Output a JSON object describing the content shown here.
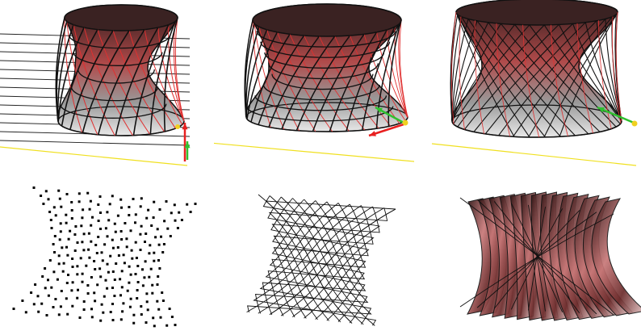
{
  "figure": {
    "panels": [
      {
        "id": "surface-planes",
        "mode": "shaded-surface-with-section-planes"
      },
      {
        "id": "surface-with-grid-arrows",
        "mode": "shaded-surface-with-grid-and-direction-arrows"
      },
      {
        "id": "surface-with-diagonal-grid",
        "mode": "shaded-surface-with-diagonal-grid"
      },
      {
        "id": "point-cloud",
        "mode": "points"
      },
      {
        "id": "wireframe-lattice",
        "mode": "wireframe"
      },
      {
        "id": "shaded-strips",
        "mode": "shaded-strips"
      }
    ],
    "colors": {
      "surface_dark": "#2a1a1a",
      "surface_red": "#b04a4a",
      "surface_light": "#e8e8e8",
      "edge": "#111111",
      "isoline_red": "#e03030",
      "ground_line": "#f0e020",
      "arrow_red": "#e82020",
      "arrow_green": "#30c030",
      "marker_yellow": "#f0d020",
      "strip_pink": "#c87878"
    }
  }
}
